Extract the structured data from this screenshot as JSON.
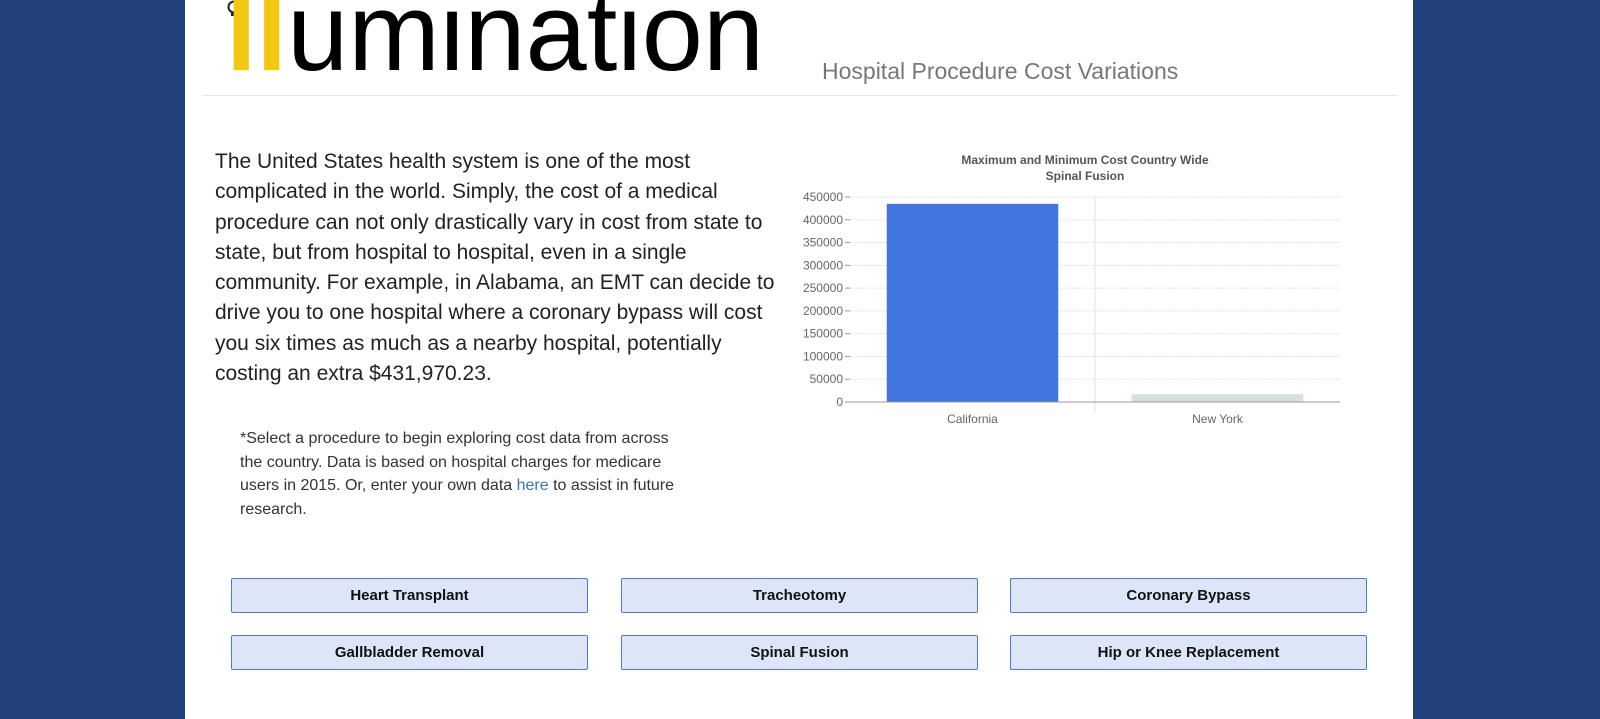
{
  "header": {
    "logo_highlight": "ll",
    "logo_rest": "umination",
    "subtitle": "Hospital Procedure Cost Variations"
  },
  "intro": {
    "text": "The United States health system is one of the most complicated in the world. Simply, the cost of a medical procedure can not only drastically vary in cost from state to state, but from hospital to hospital, even in a single community. For example, in Alabama, an EMT can decide to drive you to one hospital where a coronary bypass will cost you six times as much as a nearby hospital, potentially costing an extra $431,970.23."
  },
  "note": {
    "before_link": "*Select a procedure to begin exploring cost data from across the country. Data is based on hospital charges for medicare users in 2015. Or, enter your own data ",
    "link": "here",
    "after_link": " to assist in future research."
  },
  "procedures": [
    {
      "label": "Heart Transplant"
    },
    {
      "label": "Tracheotomy"
    },
    {
      "label": "Coronary Bypass"
    },
    {
      "label": "Gallbladder Removal"
    },
    {
      "label": "Spinal Fusion"
    },
    {
      "label": "Hip or Knee Replacement"
    }
  ],
  "colors": {
    "background": "#22407a",
    "accent_bar": "#4375e0",
    "min_bar": "#d5e0e1",
    "logo_yellow": "#f2c811",
    "button_bg": "#dde6f8",
    "button_border": "#4b7bd1"
  },
  "chart_data": {
    "type": "bar",
    "title": "Maximum and Minimum Cost Country Wide",
    "subtitle": "Spinal Fusion",
    "categories": [
      "California",
      "New York"
    ],
    "values": [
      435000,
      17000
    ],
    "bar_colors": [
      "#4375e0",
      "#d5e0e1"
    ],
    "ylim": [
      0,
      450000
    ],
    "yticks": [
      0,
      50000,
      100000,
      150000,
      200000,
      250000,
      300000,
      350000,
      400000,
      450000
    ],
    "grid": true,
    "xlabel": "",
    "ylabel": ""
  }
}
